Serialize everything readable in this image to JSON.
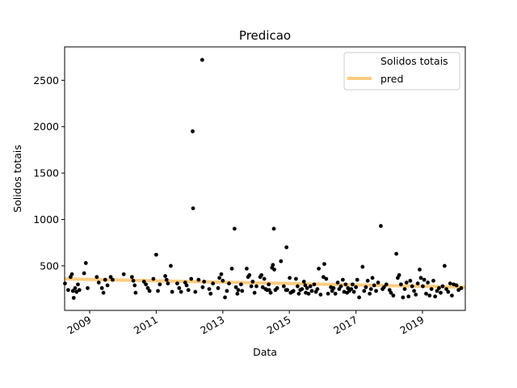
{
  "chart_data": {
    "type": "scatter",
    "title": "Predicao",
    "xlabel": "Data",
    "ylabel": "Solidos totais",
    "x_type": "date",
    "xlim": [
      "2008-04-01",
      "2020-04-15"
    ],
    "ylim": [
      20,
      2860
    ],
    "x_ticks": [
      {
        "value": "2009-01-01",
        "label": "2009"
      },
      {
        "value": "2011-01-01",
        "label": "2011"
      },
      {
        "value": "2013-01-01",
        "label": "2013"
      },
      {
        "value": "2015-01-01",
        "label": "2015"
      },
      {
        "value": "2017-01-01",
        "label": "2017"
      },
      {
        "value": "2019-01-01",
        "label": "2019"
      }
    ],
    "y_ticks": [
      500,
      1000,
      1500,
      2000,
      2500
    ],
    "grid": false,
    "legend": {
      "position": "top-right",
      "entries": [
        {
          "label": "Solidos totais",
          "marker": "none"
        },
        {
          "label": "pred",
          "marker": "line"
        }
      ]
    },
    "colors": {
      "points": "#000000",
      "pred": "#ffcc80"
    },
    "series": [
      {
        "name": "Solidos totais",
        "type": "scatter",
        "points": [
          [
            "2008-04-05",
            310
          ],
          [
            "2008-05-10",
            240
          ],
          [
            "2008-06-05",
            380
          ],
          [
            "2008-06-20",
            410
          ],
          [
            "2008-07-01",
            230
          ],
          [
            "2008-07-10",
            155
          ],
          [
            "2008-07-25",
            260
          ],
          [
            "2008-08-10",
            220
          ],
          [
            "2008-08-25",
            300
          ],
          [
            "2008-09-10",
            240
          ],
          [
            "2008-11-01",
            420
          ],
          [
            "2008-11-20",
            530
          ],
          [
            "2008-12-10",
            260
          ],
          [
            "2009-03-20",
            380
          ],
          [
            "2009-04-10",
            320
          ],
          [
            "2009-05-15",
            260
          ],
          [
            "2009-06-01",
            210
          ],
          [
            "2009-06-20",
            350
          ],
          [
            "2009-07-15",
            290
          ],
          [
            "2009-08-20",
            380
          ],
          [
            "2009-09-10",
            350
          ],
          [
            "2010-01-10",
            410
          ],
          [
            "2010-04-10",
            380
          ],
          [
            "2010-04-25",
            340
          ],
          [
            "2010-05-10",
            290
          ],
          [
            "2010-05-20",
            210
          ],
          [
            "2010-08-20",
            330
          ],
          [
            "2010-09-10",
            300
          ],
          [
            "2010-10-01",
            260
          ],
          [
            "2010-10-20",
            230
          ],
          [
            "2010-12-01",
            360
          ],
          [
            "2011-01-01",
            620
          ],
          [
            "2011-01-20",
            230
          ],
          [
            "2011-02-10",
            300
          ],
          [
            "2011-04-10",
            390
          ],
          [
            "2011-04-25",
            350
          ],
          [
            "2011-05-10",
            310
          ],
          [
            "2011-06-10",
            500
          ],
          [
            "2011-06-25",
            220
          ],
          [
            "2011-08-20",
            310
          ],
          [
            "2011-09-10",
            260
          ],
          [
            "2011-10-01",
            220
          ],
          [
            "2011-11-15",
            320
          ],
          [
            "2011-12-01",
            290
          ],
          [
            "2011-12-20",
            240
          ],
          [
            "2012-01-20",
            360
          ],
          [
            "2012-02-05",
            1950
          ],
          [
            "2012-02-10",
            1120
          ],
          [
            "2012-03-05",
            220
          ],
          [
            "2012-04-10",
            350
          ],
          [
            "2012-05-20",
            2720
          ],
          [
            "2012-05-25",
            270
          ],
          [
            "2012-06-10",
            330
          ],
          [
            "2012-08-05",
            250
          ],
          [
            "2012-08-20",
            200
          ],
          [
            "2012-09-15",
            310
          ],
          [
            "2012-11-10",
            260
          ],
          [
            "2012-11-25",
            370
          ],
          [
            "2012-12-15",
            410
          ],
          [
            "2013-01-01",
            340
          ],
          [
            "2013-01-25",
            160
          ],
          [
            "2013-02-15",
            230
          ],
          [
            "2013-03-10",
            310
          ],
          [
            "2013-04-10",
            470
          ],
          [
            "2013-05-10",
            900
          ],
          [
            "2013-05-25",
            270
          ],
          [
            "2013-06-10",
            200
          ],
          [
            "2013-06-20",
            240
          ],
          [
            "2013-07-20",
            300
          ],
          [
            "2013-08-01",
            230
          ],
          [
            "2013-09-20",
            470
          ],
          [
            "2013-10-05",
            380
          ],
          [
            "2013-10-20",
            400
          ],
          [
            "2013-11-10",
            280
          ],
          [
            "2013-11-25",
            330
          ],
          [
            "2013-12-15",
            210
          ],
          [
            "2014-01-05",
            280
          ],
          [
            "2014-02-15",
            380
          ],
          [
            "2014-03-01",
            400
          ],
          [
            "2014-03-15",
            270
          ],
          [
            "2014-04-01",
            360
          ],
          [
            "2014-04-15",
            250
          ],
          [
            "2014-05-01",
            240
          ],
          [
            "2014-05-20",
            300
          ],
          [
            "2014-05-25",
            240
          ],
          [
            "2014-06-10",
            210
          ],
          [
            "2014-06-25",
            480
          ],
          [
            "2014-07-05",
            510
          ],
          [
            "2014-07-15",
            900
          ],
          [
            "2014-07-20",
            460
          ],
          [
            "2014-08-01",
            240
          ],
          [
            "2014-08-20",
            260
          ],
          [
            "2014-10-01",
            550
          ],
          [
            "2014-11-01",
            280
          ],
          [
            "2014-11-25",
            240
          ],
          [
            "2014-12-01",
            700
          ],
          [
            "2014-12-10",
            240
          ],
          [
            "2015-01-05",
            370
          ],
          [
            "2015-01-15",
            210
          ],
          [
            "2015-02-01",
            220
          ],
          [
            "2015-02-15",
            230
          ],
          [
            "2015-03-15",
            360
          ],
          [
            "2015-04-01",
            280
          ],
          [
            "2015-04-15",
            200
          ],
          [
            "2015-05-01",
            240
          ],
          [
            "2015-05-20",
            250
          ],
          [
            "2015-06-10",
            330
          ],
          [
            "2015-06-25",
            290
          ],
          [
            "2015-07-01",
            210
          ],
          [
            "2015-07-15",
            260
          ],
          [
            "2015-08-01",
            200
          ],
          [
            "2015-08-20",
            280
          ],
          [
            "2015-09-05",
            230
          ],
          [
            "2015-10-01",
            300
          ],
          [
            "2015-10-20",
            220
          ],
          [
            "2015-11-05",
            250
          ],
          [
            "2015-11-20",
            470
          ],
          [
            "2015-12-10",
            190
          ],
          [
            "2016-01-10",
            380
          ],
          [
            "2016-01-20",
            520
          ],
          [
            "2016-02-10",
            360
          ],
          [
            "2016-03-01",
            200
          ],
          [
            "2016-04-01",
            270
          ],
          [
            "2016-04-15",
            230
          ],
          [
            "2016-05-01",
            260
          ],
          [
            "2016-05-20",
            200
          ],
          [
            "2016-06-15",
            320
          ],
          [
            "2016-07-01",
            250
          ],
          [
            "2016-07-20",
            280
          ],
          [
            "2016-08-10",
            350
          ],
          [
            "2016-08-25",
            220
          ],
          [
            "2016-09-10",
            300
          ],
          [
            "2016-09-25",
            210
          ],
          [
            "2016-10-05",
            260
          ],
          [
            "2016-10-20",
            230
          ],
          [
            "2016-11-10",
            250
          ],
          [
            "2016-11-25",
            300
          ],
          [
            "2016-12-10",
            220
          ],
          [
            "2017-01-01",
            270
          ],
          [
            "2017-01-15",
            350
          ],
          [
            "2017-02-05",
            160
          ],
          [
            "2017-03-15",
            490
          ],
          [
            "2017-04-01",
            230
          ],
          [
            "2017-04-20",
            270
          ],
          [
            "2017-05-10",
            340
          ],
          [
            "2017-06-01",
            200
          ],
          [
            "2017-06-15",
            250
          ],
          [
            "2017-07-01",
            370
          ],
          [
            "2017-07-20",
            290
          ],
          [
            "2017-08-10",
            230
          ],
          [
            "2017-09-01",
            320
          ],
          [
            "2017-10-01",
            930
          ],
          [
            "2017-10-20",
            250
          ],
          [
            "2017-11-05",
            270
          ],
          [
            "2017-12-01",
            300
          ],
          [
            "2018-01-05",
            240
          ],
          [
            "2018-01-20",
            210
          ],
          [
            "2018-02-15",
            180
          ],
          [
            "2018-03-20",
            630
          ],
          [
            "2018-04-05",
            370
          ],
          [
            "2018-04-20",
            400
          ],
          [
            "2018-05-10",
            300
          ],
          [
            "2018-06-01",
            160
          ],
          [
            "2018-06-20",
            250
          ],
          [
            "2018-07-10",
            320
          ],
          [
            "2018-08-01",
            170
          ],
          [
            "2018-08-20",
            340
          ],
          [
            "2018-09-10",
            280
          ],
          [
            "2018-10-01",
            230
          ],
          [
            "2018-10-20",
            190
          ],
          [
            "2018-11-10",
            310
          ],
          [
            "2018-12-01",
            460
          ],
          [
            "2018-12-15",
            370
          ],
          [
            "2019-01-05",
            280
          ],
          [
            "2019-01-20",
            350
          ],
          [
            "2019-02-10",
            200
          ],
          [
            "2019-03-01",
            320
          ],
          [
            "2019-03-20",
            180
          ],
          [
            "2019-04-10",
            250
          ],
          [
            "2019-05-01",
            340
          ],
          [
            "2019-05-20",
            170
          ],
          [
            "2019-06-10",
            230
          ],
          [
            "2019-07-01",
            260
          ],
          [
            "2019-07-20",
            210
          ],
          [
            "2019-08-10",
            280
          ],
          [
            "2019-09-01",
            500
          ],
          [
            "2019-09-20",
            250
          ],
          [
            "2019-10-10",
            220
          ],
          [
            "2019-11-01",
            310
          ],
          [
            "2019-11-20",
            180
          ],
          [
            "2019-12-10",
            300
          ],
          [
            "2020-01-10",
            290
          ],
          [
            "2020-02-01",
            240
          ],
          [
            "2020-03-01",
            260
          ]
        ]
      },
      {
        "name": "pred",
        "type": "line",
        "points": [
          [
            "2008-04-01",
            360
          ],
          [
            "2020-04-15",
            270
          ]
        ]
      }
    ]
  }
}
